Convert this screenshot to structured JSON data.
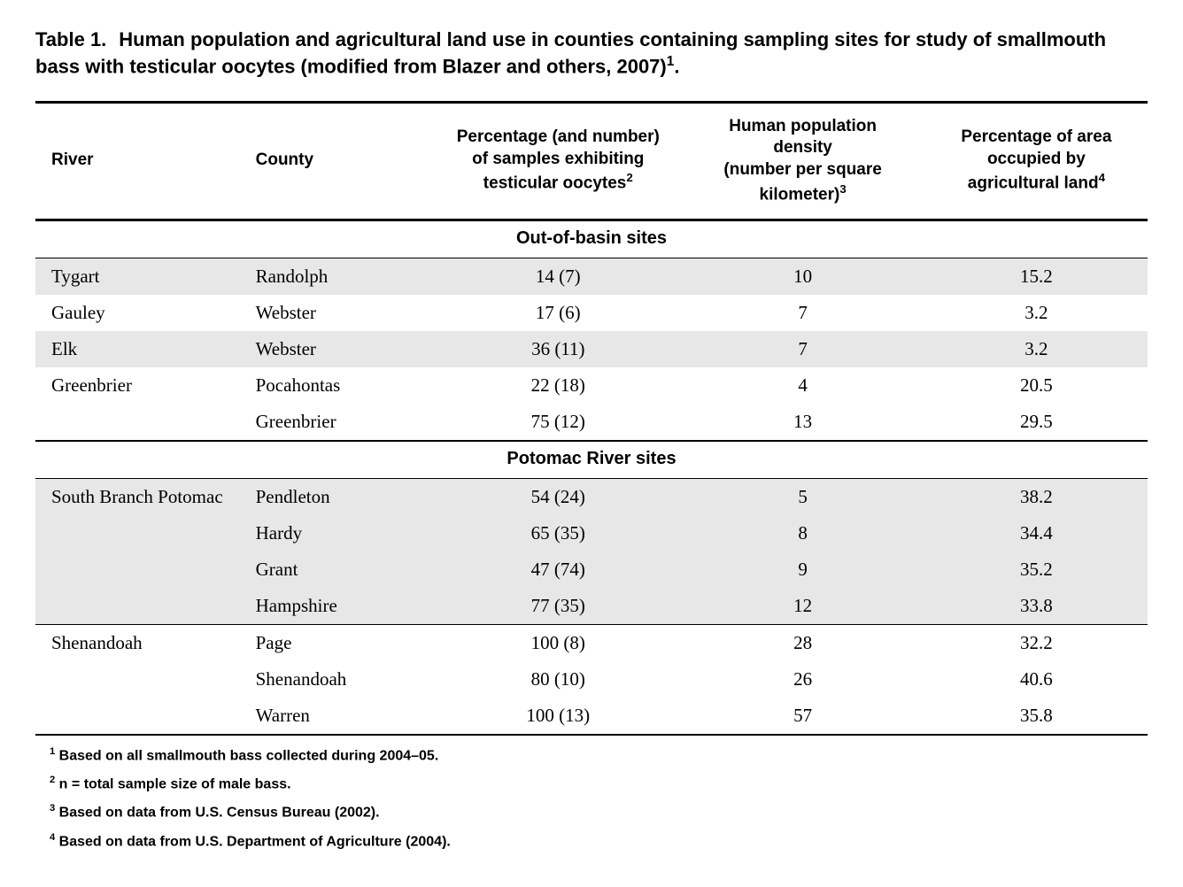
{
  "caption": {
    "label": "Table 1.",
    "text": "Human population and agricultural land use in counties containing sampling sites for study of smallmouth bass with testicular oocytes (modified from Blazer and others, 2007)",
    "sup": "1",
    "terminator": "."
  },
  "columns": {
    "river": "River",
    "county": "County",
    "pct_samples_a": "Percentage (and number)",
    "pct_samples_b": "of samples exhibiting",
    "pct_samples_c": "testicular oocytes",
    "pct_samples_sup": "2",
    "pop_a": "Human population",
    "pop_b": "density",
    "pop_c": "(number per square",
    "pop_d": "kilometer)",
    "pop_sup": "3",
    "ag_a": "Percentage of area",
    "ag_b": "occupied by",
    "ag_c": "agricultural land",
    "ag_sup": "4"
  },
  "sections": {
    "out_of_basin": "Out-of-basin sites",
    "potomac": "Potomac River sites"
  },
  "rows_out": [
    {
      "river": "Tygart",
      "county": "Randolph",
      "pct": "14 (7)",
      "pop": "10",
      "ag": "15.2",
      "shade": true,
      "rule": false
    },
    {
      "river": "Gauley",
      "county": "Webster",
      "pct": "17 (6)",
      "pop": "7",
      "ag": "3.2",
      "shade": false,
      "rule": false
    },
    {
      "river": "Elk",
      "county": "Webster",
      "pct": "36 (11)",
      "pop": "7",
      "ag": "3.2",
      "shade": true,
      "rule": false
    },
    {
      "river": "Greenbrier",
      "county": "Pocahontas",
      "pct": "22 (18)",
      "pop": "4",
      "ag": "20.5",
      "shade": false,
      "rule": false
    },
    {
      "river": "",
      "county": "Greenbrier",
      "pct": "75 (12)",
      "pop": "13",
      "ag": "29.5",
      "shade": false,
      "rule": true
    }
  ],
  "rows_potomac": [
    {
      "river": "South Branch Potomac",
      "county": "Pendleton",
      "pct": "54 (24)",
      "pop": "5",
      "ag": "38.2",
      "shade": true,
      "rule": false
    },
    {
      "river": "",
      "county": "Hardy",
      "pct": "65 (35)",
      "pop": "8",
      "ag": "34.4",
      "shade": true,
      "rule": false
    },
    {
      "river": "",
      "county": "Grant",
      "pct": "47 (74)",
      "pop": "9",
      "ag": "35.2",
      "shade": true,
      "rule": false
    },
    {
      "river": "",
      "county": "Hampshire",
      "pct": "77 (35)",
      "pop": "12",
      "ag": "33.8",
      "shade": true,
      "rule": false
    },
    {
      "river": "Shenandoah",
      "county": "Page",
      "pct": "100 (8)",
      "pop": "28",
      "ag": "32.2",
      "shade": false,
      "rule": false
    },
    {
      "river": "",
      "county": "Shenandoah",
      "pct": "80 (10)",
      "pop": "26",
      "ag": "40.6",
      "shade": false,
      "rule": false
    },
    {
      "river": "",
      "county": "Warren",
      "pct": "100 (13)",
      "pop": "57",
      "ag": "35.8",
      "shade": false,
      "rule": true
    }
  ],
  "footnotes": [
    {
      "sup": "1",
      "text": " Based on all smallmouth bass collected during 2004–05."
    },
    {
      "sup": "2",
      "text": " n = total sample size of male bass."
    },
    {
      "sup": "3",
      "text": " Based on data from U.S. Census Bureau (2002)."
    },
    {
      "sup": "4",
      "text": " Based on data from U.S. Department of Agriculture (2004)."
    }
  ]
}
